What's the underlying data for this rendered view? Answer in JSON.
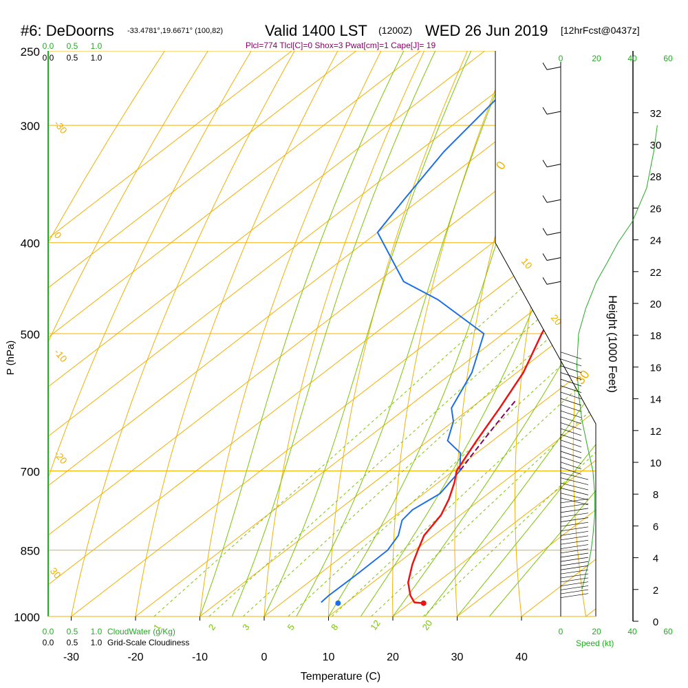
{
  "header": {
    "station": "#6: DeDoorns",
    "coords": "-33.4781°,19.6671° (100,82)",
    "valid": "Valid 1400 LST",
    "utc": "(1200Z)",
    "date": "WED 26 Jun 2019",
    "fcst": "[12hrFcst@0437z]"
  },
  "indices": "Plcl=774 Tlcl[C]=0 Shox=3 Pwat[cm]=1 Cape[J]= 19",
  "axes": {
    "ylabel": "P (hPa)",
    "xlabel": "Temperature (C)",
    "height_label": "Height (1000 Feet)",
    "speed_label": "Speed (kt)",
    "cloudwater_label": "CloudWater (g/Kg)",
    "cloudiness_label": "Grid-Scale Cloudiness"
  },
  "colors": {
    "isotherm": "#f0b000",
    "dry_adiabat": "#f0b000",
    "moist_adiabat": "#7ac400",
    "mixing_ratio": "#7ac400",
    "temperature": "#ee1111",
    "dewpoint": "#1a6ee8",
    "parcel": "#880066",
    "cloud": "#22aa22",
    "black": "#000000"
  },
  "chart_data": {
    "type": "skew-t",
    "pressure_levels": [
      250,
      300,
      400,
      500,
      700,
      850,
      1000
    ],
    "temperature_ticks": [
      -30,
      -20,
      -10,
      0,
      10,
      20,
      30,
      40
    ],
    "temperature_range": [
      -34,
      36
    ],
    "pressure_range": [
      1000,
      250
    ],
    "height_ticks_kft": [
      0,
      2,
      4,
      6,
      8,
      10,
      12,
      14,
      16,
      18,
      20,
      22,
      24,
      26,
      28,
      30,
      32
    ],
    "speed_ticks": [
      "0",
      "20",
      "40",
      "60"
    ],
    "cloud_ticks": [
      "0.0",
      "0.5",
      "1.0"
    ],
    "isotherm_labels": [
      {
        "text": "-30",
        "T": -30
      },
      {
        "text": "-20",
        "T": -20
      },
      {
        "text": "-10",
        "T": -10
      },
      {
        "text": "0",
        "T": 0
      },
      {
        "text": "10",
        "T": 10
      },
      {
        "text": "20",
        "T": 20
      },
      {
        "text": "30",
        "T": 30
      }
    ],
    "mixing_ratio_labels": [
      "1",
      "2",
      "3",
      "5",
      "8",
      "12",
      "20"
    ],
    "temperature_profile": [
      {
        "p": 968,
        "t": 22.1
      },
      {
        "p": 966,
        "t": 20.5
      },
      {
        "p": 950,
        "t": 18.5
      },
      {
        "p": 920,
        "t": 15.5
      },
      {
        "p": 880,
        "t": 12.5
      },
      {
        "p": 850,
        "t": 10.5
      },
      {
        "p": 820,
        "t": 8.5
      },
      {
        "p": 780,
        "t": 7.0
      },
      {
        "p": 750,
        "t": 5.0
      },
      {
        "p": 720,
        "t": 2.5
      },
      {
        "p": 700,
        "t": 0.5
      },
      {
        "p": 650,
        "t": -2.5
      },
      {
        "p": 600,
        "t": -5.5
      },
      {
        "p": 550,
        "t": -9.0
      },
      {
        "p": 500,
        "t": -14.0
      },
      {
        "p": 450,
        "t": -19.0
      },
      {
        "p": 400,
        "t": -25.5
      },
      {
        "p": 370,
        "t": -30.0
      },
      {
        "p": 330,
        "t": -37.0
      },
      {
        "p": 300,
        "t": -42.0
      },
      {
        "p": 270,
        "t": -48.0
      },
      {
        "p": 255,
        "t": -50.5
      }
    ],
    "dewpoint_profile": [
      {
        "p": 966,
        "t": 6.0
      },
      {
        "p": 950,
        "t": 5.8
      },
      {
        "p": 900,
        "t": 5.9
      },
      {
        "p": 850,
        "t": 5.8
      },
      {
        "p": 820,
        "t": 4.5
      },
      {
        "p": 790,
        "t": 2.0
      },
      {
        "p": 770,
        "t": 1.5
      },
      {
        "p": 740,
        "t": 2.5
      },
      {
        "p": 700,
        "t": 1.0
      },
      {
        "p": 670,
        "t": -2.5
      },
      {
        "p": 650,
        "t": -7.0
      },
      {
        "p": 620,
        "t": -10.0
      },
      {
        "p": 600,
        "t": -13.0
      },
      {
        "p": 550,
        "t": -17.0
      },
      {
        "p": 500,
        "t": -23.0
      },
      {
        "p": 460,
        "t": -37.0
      },
      {
        "p": 440,
        "t": -46.0
      },
      {
        "p": 390,
        "t": -60.0
      },
      {
        "p": 360,
        "t": -62.5
      },
      {
        "p": 320,
        "t": -66.0
      },
      {
        "p": 260,
        "t": -70.0
      }
    ],
    "parcel_profile": [
      {
        "p": 590,
        "t": -4.5
      },
      {
        "p": 620,
        "t": -3.0
      },
      {
        "p": 650,
        "t": -1.5
      },
      {
        "p": 680,
        "t": 0.0
      },
      {
        "p": 700,
        "t": 1.0
      }
    ],
    "surface_temperature": {
      "p": 968,
      "t": 22.1
    },
    "surface_dewpoint": {
      "p": 968,
      "t": 8.8
    },
    "height_profile": [
      {
        "p": 935,
        "spd": 12
      },
      {
        "p": 900,
        "spd": 14
      },
      {
        "p": 870,
        "spd": 16
      },
      {
        "p": 850,
        "spd": 17
      },
      {
        "p": 820,
        "spd": 18
      },
      {
        "p": 780,
        "spd": 19
      },
      {
        "p": 740,
        "spd": 19
      },
      {
        "p": 700,
        "spd": 18
      },
      {
        "p": 660,
        "spd": 15
      },
      {
        "p": 620,
        "spd": 12
      },
      {
        "p": 580,
        "spd": 10
      },
      {
        "p": 540,
        "spd": 9
      },
      {
        "p": 500,
        "spd": 10
      },
      {
        "p": 470,
        "spd": 14
      },
      {
        "p": 440,
        "spd": 20
      },
      {
        "p": 420,
        "spd": 26
      },
      {
        "p": 400,
        "spd": 32
      },
      {
        "p": 380,
        "spd": 40
      },
      {
        "p": 350,
        "spd": 48
      },
      {
        "p": 320,
        "spd": 52
      },
      {
        "p": 300,
        "spd": 54
      }
    ]
  }
}
